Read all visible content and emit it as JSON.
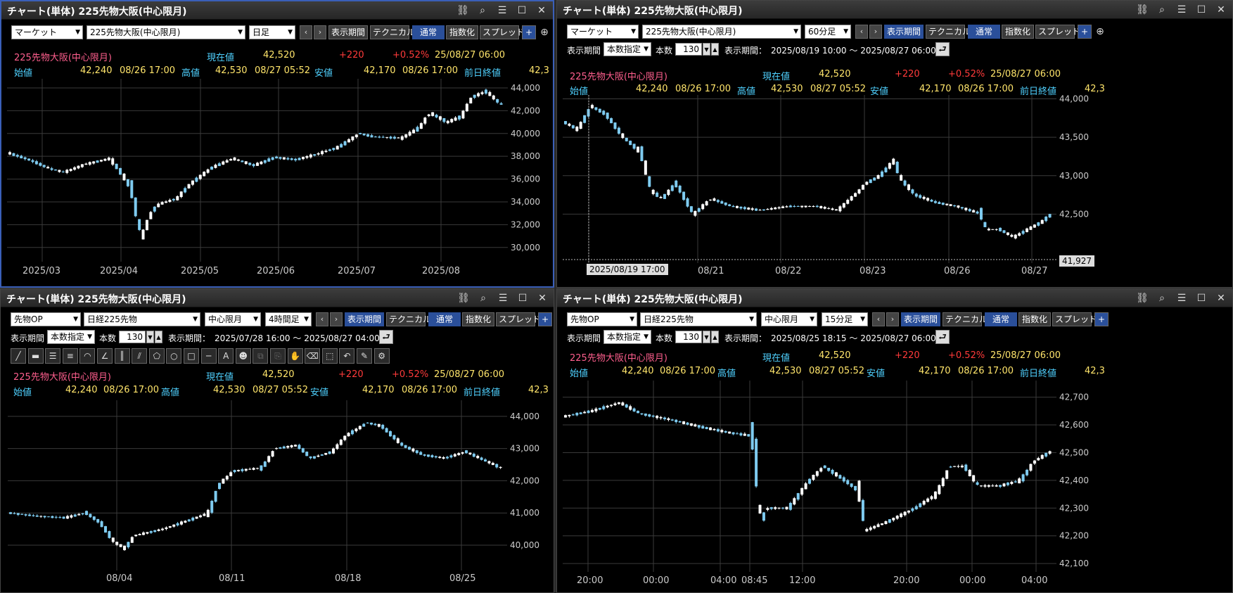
{
  "colors": {
    "up": "#ffffff",
    "down": "#7ecbf0",
    "grid": "#3a3a3a",
    "axis": "#cccccc"
  },
  "common": {
    "name": "225先物大阪(中心限月)",
    "genzai_label": "現在値",
    "genzai": "42,520",
    "change": "+220",
    "pct": "+0.52%",
    "datetime": "25/08/27  06:00",
    "hajime_label": "始値",
    "hajime": "42,240",
    "hajime_t": "08/26  17:00",
    "taka_label": "高値",
    "taka": "42,530",
    "taka_t": "08/27  05:52",
    "yasu_label": "安値",
    "yasu": "42,170",
    "yasu_t": "08/26  17:00",
    "zen_label": "前日終値",
    "zen": "42,3",
    "period_label": "表示期間",
    "honsu_label": "本数",
    "honsu": "130",
    "range_label": "表示期間：",
    "btn_period": "表示期間",
    "btn_tech": "テクニカル",
    "btn_normal": "通常",
    "btn_index": "指数化",
    "btn_spread": "スプレッド",
    "btn_plus": "+"
  },
  "panels": [
    {
      "title": "チャート(単体) 225先物大阪(中心限月)",
      "sel1": "マーケット",
      "sel2": "225先物大阪(中心限月)",
      "interval": "日足",
      "chart_data": {
        "type": "candlestick",
        "interval": "日足",
        "y_ticks": [
          "44,000",
          "42,000",
          "40,000",
          "38,000",
          "36,000",
          "34,000",
          "32,000",
          "30,000"
        ],
        "x_ticks": [
          "2025/03",
          "2025/04",
          "2025/05",
          "2025/06",
          "2025/07",
          "2025/08"
        ],
        "ylim": [
          29000,
          44800
        ]
      }
    },
    {
      "title": "チャート(単体) 225先物大阪(中心限月)",
      "sel1": "マーケット",
      "sel2": "225先物大阪(中心限月)",
      "interval": "60分足",
      "period_mode": "本数指定",
      "range": "2025/08/19 10:00 ～ 2025/08/27 06:00",
      "cursor_date": "2025/08/19 17:00",
      "cursor_price": "41,927",
      "chart_data": {
        "type": "candlestick",
        "interval": "60分足",
        "y_ticks": [
          "44,000",
          "43,500",
          "43,000",
          "42,500"
        ],
        "x_ticks": [
          "08/21",
          "08/22",
          "08/23",
          "08/26",
          "08/27"
        ],
        "ylim": [
          41900,
          44050
        ]
      }
    },
    {
      "title": "チャート(単体) 225先物大阪(中心限月)",
      "sel1": "先物OP",
      "sel2": "日経225先物",
      "sel3": "中心限月",
      "interval": "4時間足",
      "period_mode": "本数指定",
      "range": "2025/07/28 16:00 ～ 2025/08/27 04:00",
      "chart_data": {
        "type": "candlestick",
        "interval": "4時間足",
        "y_ticks": [
          "44,000",
          "43,000",
          "42,000",
          "41,000",
          "40,000"
        ],
        "x_ticks": [
          "08/04",
          "08/11",
          "08/18",
          "08/25"
        ],
        "ylim": [
          39300,
          44500
        ]
      }
    },
    {
      "title": "チャート(単体) 225先物大阪(中心限月)",
      "sel1": "先物OP",
      "sel2": "日経225先物",
      "sel3": "中心限月",
      "interval": "15分足",
      "period_mode": "本数指定",
      "range": "2025/08/25 18:15 ～ 2025/08/27 06:00",
      "chart_data": {
        "type": "candlestick",
        "interval": "15分足",
        "y_ticks": [
          "42,700",
          "42,600",
          "42,500",
          "42,400",
          "42,300",
          "42,200",
          "42,100"
        ],
        "x_ticks": [
          "20:00",
          "00:00",
          "04:00",
          "08:45",
          "12:00",
          "20:00",
          "00:00",
          "04:00"
        ],
        "ylim": [
          42080,
          42760
        ]
      }
    }
  ],
  "tools": [
    "line-tool-icon",
    "ruler-tool-icon",
    "hline-tool-icon",
    "hlines-tool-icon",
    "arc-tool-icon",
    "fan-tool-icon",
    "vlines-tool-icon",
    "channel-tool-icon",
    "pentagon-tool-icon",
    "circle-tool-icon",
    "rect-tool-icon",
    "dash-tool-icon",
    "text-tool-icon",
    "icon-tool-icon",
    "copy-tool-icon",
    "paste-tool-icon",
    "hand-tool-icon",
    "erase-tool-icon",
    "select-tool-icon",
    "undo-tool-icon",
    "save-tool-icon",
    "settings-tool-icon"
  ],
  "tool_glyphs": [
    "╱",
    "▬",
    "☰",
    "≡",
    "◠",
    "∠",
    "║",
    "⫽",
    "⬠",
    "○",
    "□",
    "─",
    "A",
    "☻",
    "⧉",
    "⎘",
    "✋",
    "⌫",
    "⬚",
    "↶",
    "✎",
    "⚙"
  ]
}
